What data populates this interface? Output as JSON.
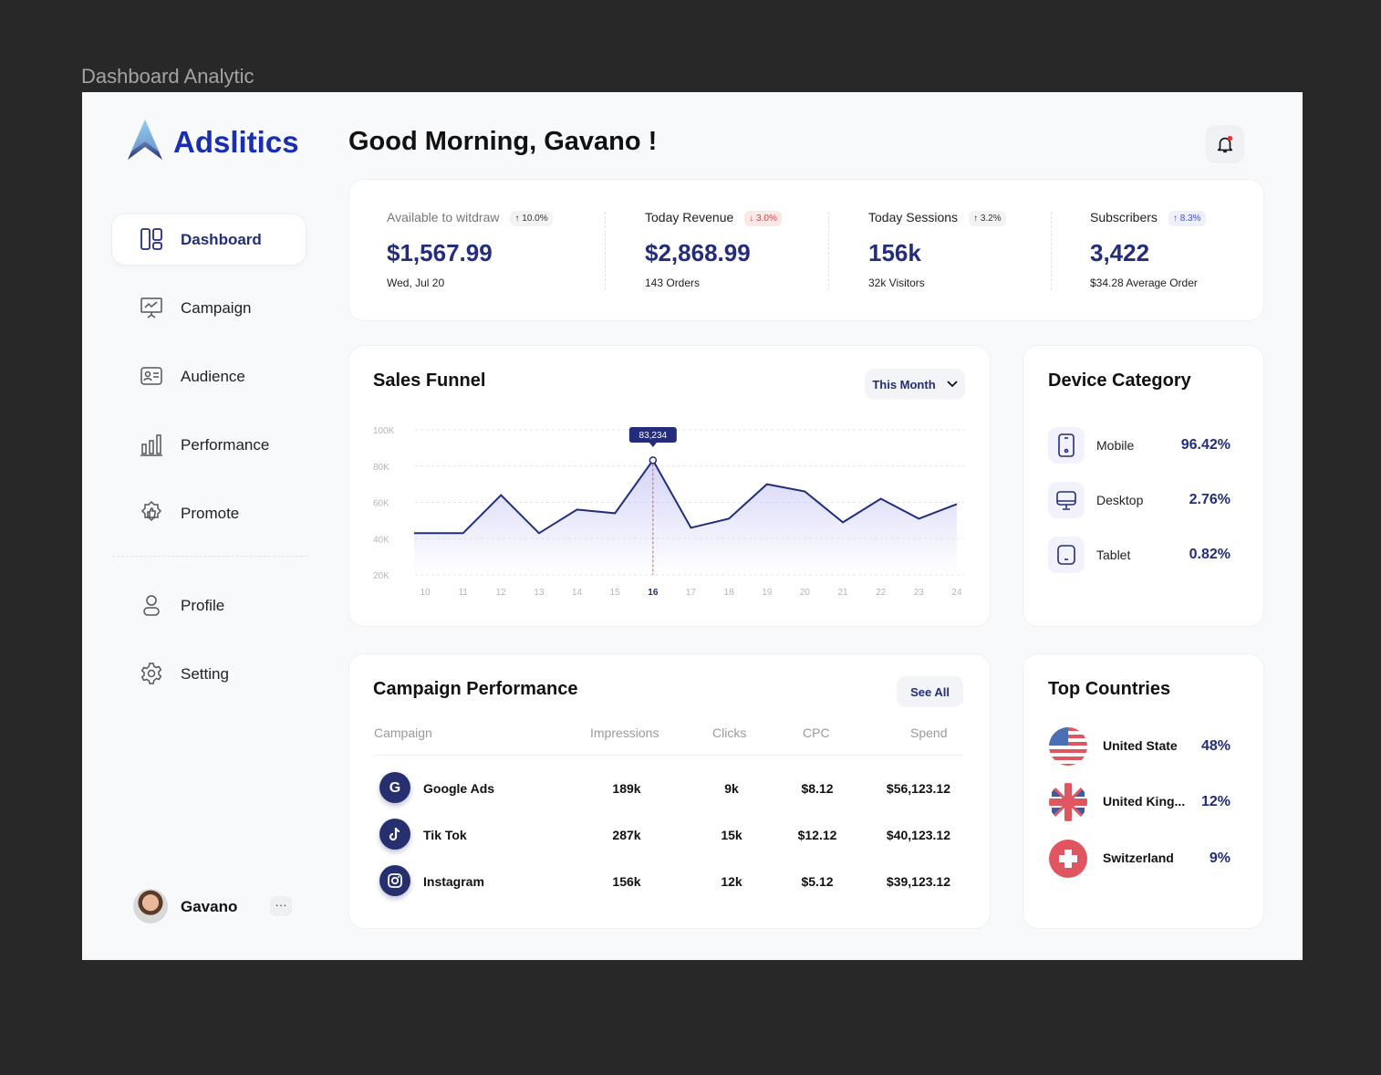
{
  "caption": "Dashboard Analytic",
  "brand": {
    "name": "Adslitics"
  },
  "header": {
    "greeting": "Good Morning, Gavano !"
  },
  "sidebar": {
    "items": [
      {
        "label": "Dashboard",
        "icon": "dashboard-icon",
        "active": true
      },
      {
        "label": "Campaign",
        "icon": "presentation-chart-icon"
      },
      {
        "label": "Audience",
        "icon": "id-card-icon"
      },
      {
        "label": "Performance",
        "icon": "bar-chart-icon"
      },
      {
        "label": "Promote",
        "icon": "thumbs-up-badge-icon"
      }
    ],
    "bottom_items": [
      {
        "label": "Profile",
        "icon": "user-icon"
      },
      {
        "label": "Setting",
        "icon": "gear-icon"
      }
    ],
    "user": {
      "name": "Gavano",
      "more": "···"
    }
  },
  "stats": [
    {
      "title": "Available to witdraw",
      "badge": "↑ 10.0%",
      "value": "$1,567.99",
      "sub": "Wed, Jul 20",
      "badge_color": "#333333",
      "badge_bg": "#f2f3f5"
    },
    {
      "title": "Today Revenue",
      "badge": "↓ 3.0%",
      "value": "$2,868.99",
      "sub": "143 Orders",
      "badge_color": "#e53935",
      "badge_bg": "#fde8e8"
    },
    {
      "title": "Today Sessions",
      "badge": "↑ 3.2%",
      "value": "156k",
      "sub": "32k Visitors",
      "badge_color": "#333333",
      "badge_bg": "#f2f3f5"
    },
    {
      "title": "Subscribers",
      "badge": "↑ 8.3%",
      "value": "3,422",
      "sub": "$34.28 Average Order",
      "badge_color": "#3b4cf0",
      "badge_bg": "#eef0fd"
    }
  ],
  "sales_funnel": {
    "title": "Sales Funnel",
    "filter": "This Month"
  },
  "chart_data": {
    "type": "area",
    "title": "Sales Funnel",
    "x": [
      10,
      11,
      12,
      13,
      14,
      15,
      16,
      17,
      18,
      19,
      20,
      21,
      22,
      23,
      24
    ],
    "values": [
      43000,
      43000,
      64000,
      43000,
      56000,
      54000,
      83234,
      46000,
      51000,
      70000,
      66000,
      49000,
      62000,
      51000,
      59000
    ],
    "yticks": [
      "100K",
      "80K",
      "60K",
      "40K",
      "20K"
    ],
    "ytick_values": [
      100000,
      80000,
      60000,
      40000,
      20000
    ],
    "ylim": [
      20000,
      100000
    ],
    "highlight": {
      "x": 16,
      "label": "83,234"
    },
    "grid": true,
    "line_color": "#232d7c"
  },
  "device": {
    "title": "Device Category",
    "items": [
      {
        "name": "Mobile",
        "value": "96.42%"
      },
      {
        "name": "Desktop",
        "value": "2.76%"
      },
      {
        "name": "Tablet",
        "value": "0.82%"
      }
    ]
  },
  "campaigns": {
    "title": "Campaign Performance",
    "see_all": "See All",
    "columns": [
      "Campaign",
      "Impressions",
      "Clicks",
      "CPC",
      "Spend"
    ],
    "rows": [
      {
        "name": "Google Ads",
        "icon": "google-icon",
        "impressions": "189k",
        "clicks": "9k",
        "cpc": "$8.12",
        "spend": "$56,123.12"
      },
      {
        "name": "Tik Tok",
        "icon": "tiktok-icon",
        "impressions": "287k",
        "clicks": "15k",
        "cpc": "$12.12",
        "spend": "$40,123.12"
      },
      {
        "name": "Instagram",
        "icon": "instagram-icon",
        "impressions": "156k",
        "clicks": "12k",
        "cpc": "$5.12",
        "spend": "$39,123.12"
      }
    ]
  },
  "countries": {
    "title": "Top Countries",
    "items": [
      {
        "name": "United State",
        "value": "48%"
      },
      {
        "name": "United King...",
        "value": "12%"
      },
      {
        "name": "Switzerland",
        "value": "9%"
      }
    ]
  }
}
